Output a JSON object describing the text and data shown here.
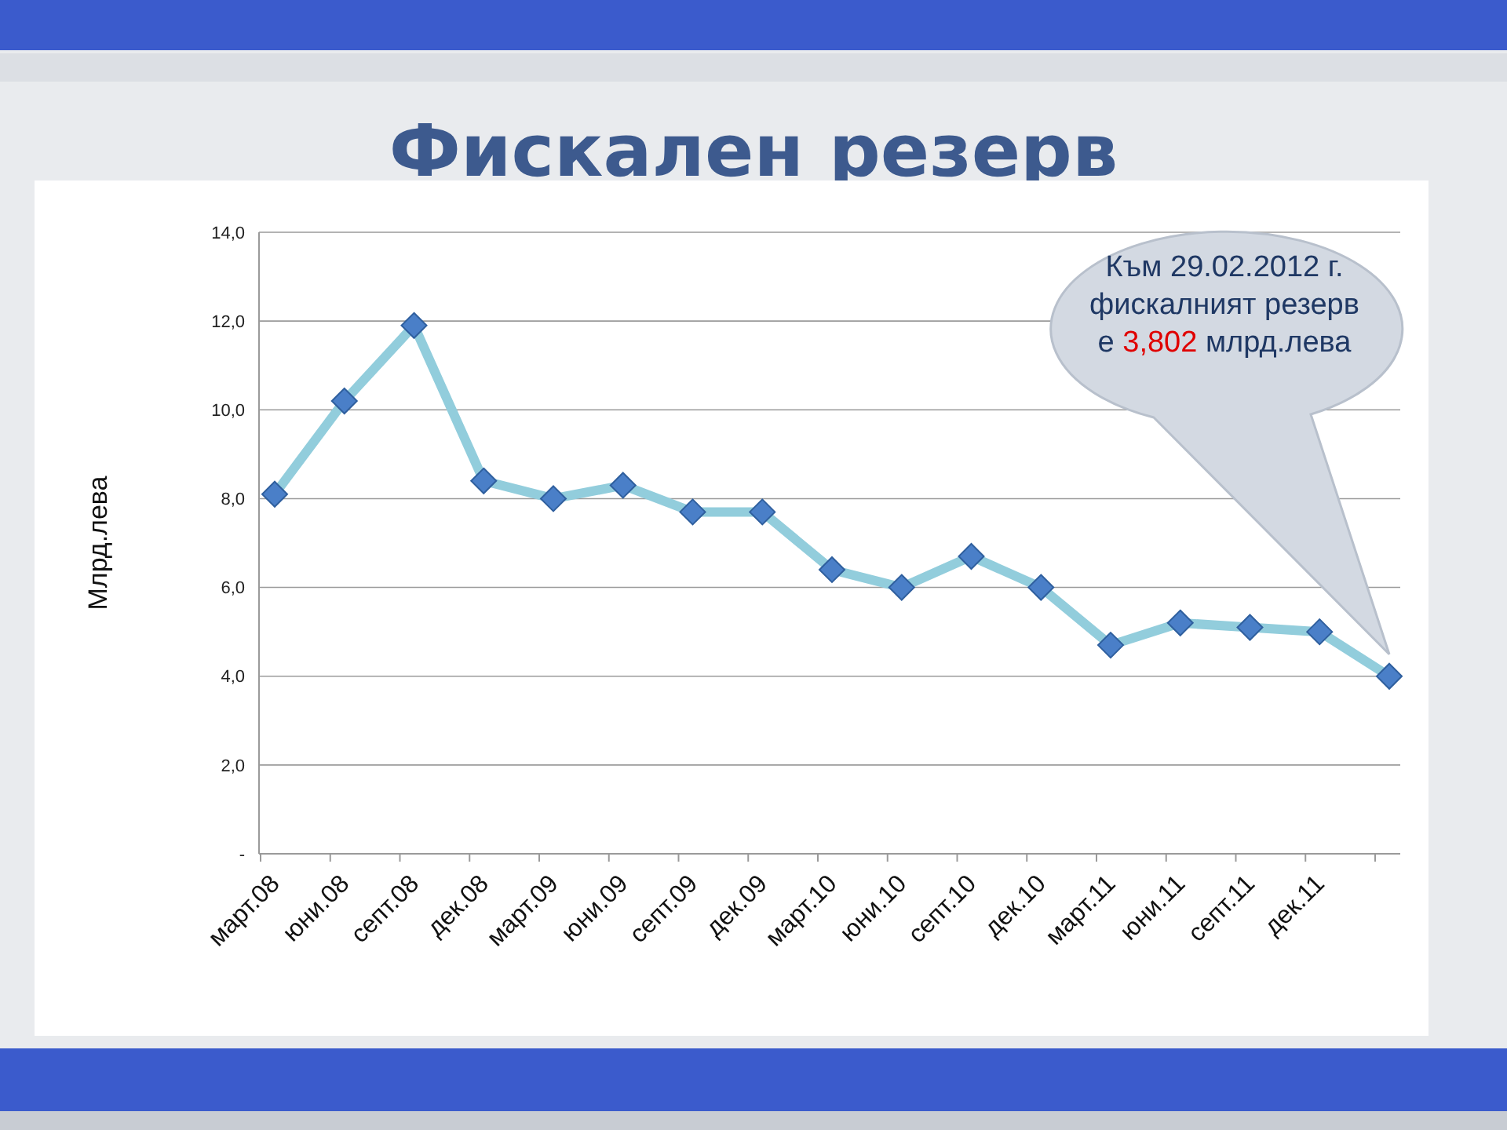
{
  "chart_data": {
    "type": "line",
    "title": "Фискален резерв",
    "ylabel": "Млрд.лева",
    "categories": [
      "март.08",
      "юни.08",
      "септ.08",
      "дек.08",
      "март.09",
      "юни.09",
      "септ.09",
      "дек.09",
      "март.10",
      "юни.10",
      "септ.10",
      "дек.10",
      "март.11",
      "юни.11",
      "септ.11",
      "дек.11",
      null
    ],
    "series": [
      {
        "color": "#92cddc",
        "values": [
          8.1,
          10.2,
          11.9,
          8.4,
          8.0,
          8.3,
          7.7,
          7.7,
          6.4,
          6.0,
          6.7,
          6.0,
          4.7,
          5.2,
          5.1,
          5.0,
          4.0
        ]
      }
    ],
    "ylim": [
      0,
      14
    ],
    "yticks": [
      {
        "value": 0,
        "label": "-"
      },
      {
        "value": 2,
        "label": "2,0"
      },
      {
        "value": 4,
        "label": "4,0"
      },
      {
        "value": 6,
        "label": "6,0"
      },
      {
        "value": 8,
        "label": "8,0"
      },
      {
        "value": 10,
        "label": "10,0"
      },
      {
        "value": 12,
        "label": "12,0"
      },
      {
        "value": 14,
        "label": "14,0"
      }
    ],
    "grid": "y",
    "marker": "diamond",
    "line_style": "solid",
    "annotations": [
      "Към 29.02.2012 г. фискалният резерв е 3,802 млрд.лева"
    ]
  }
}
